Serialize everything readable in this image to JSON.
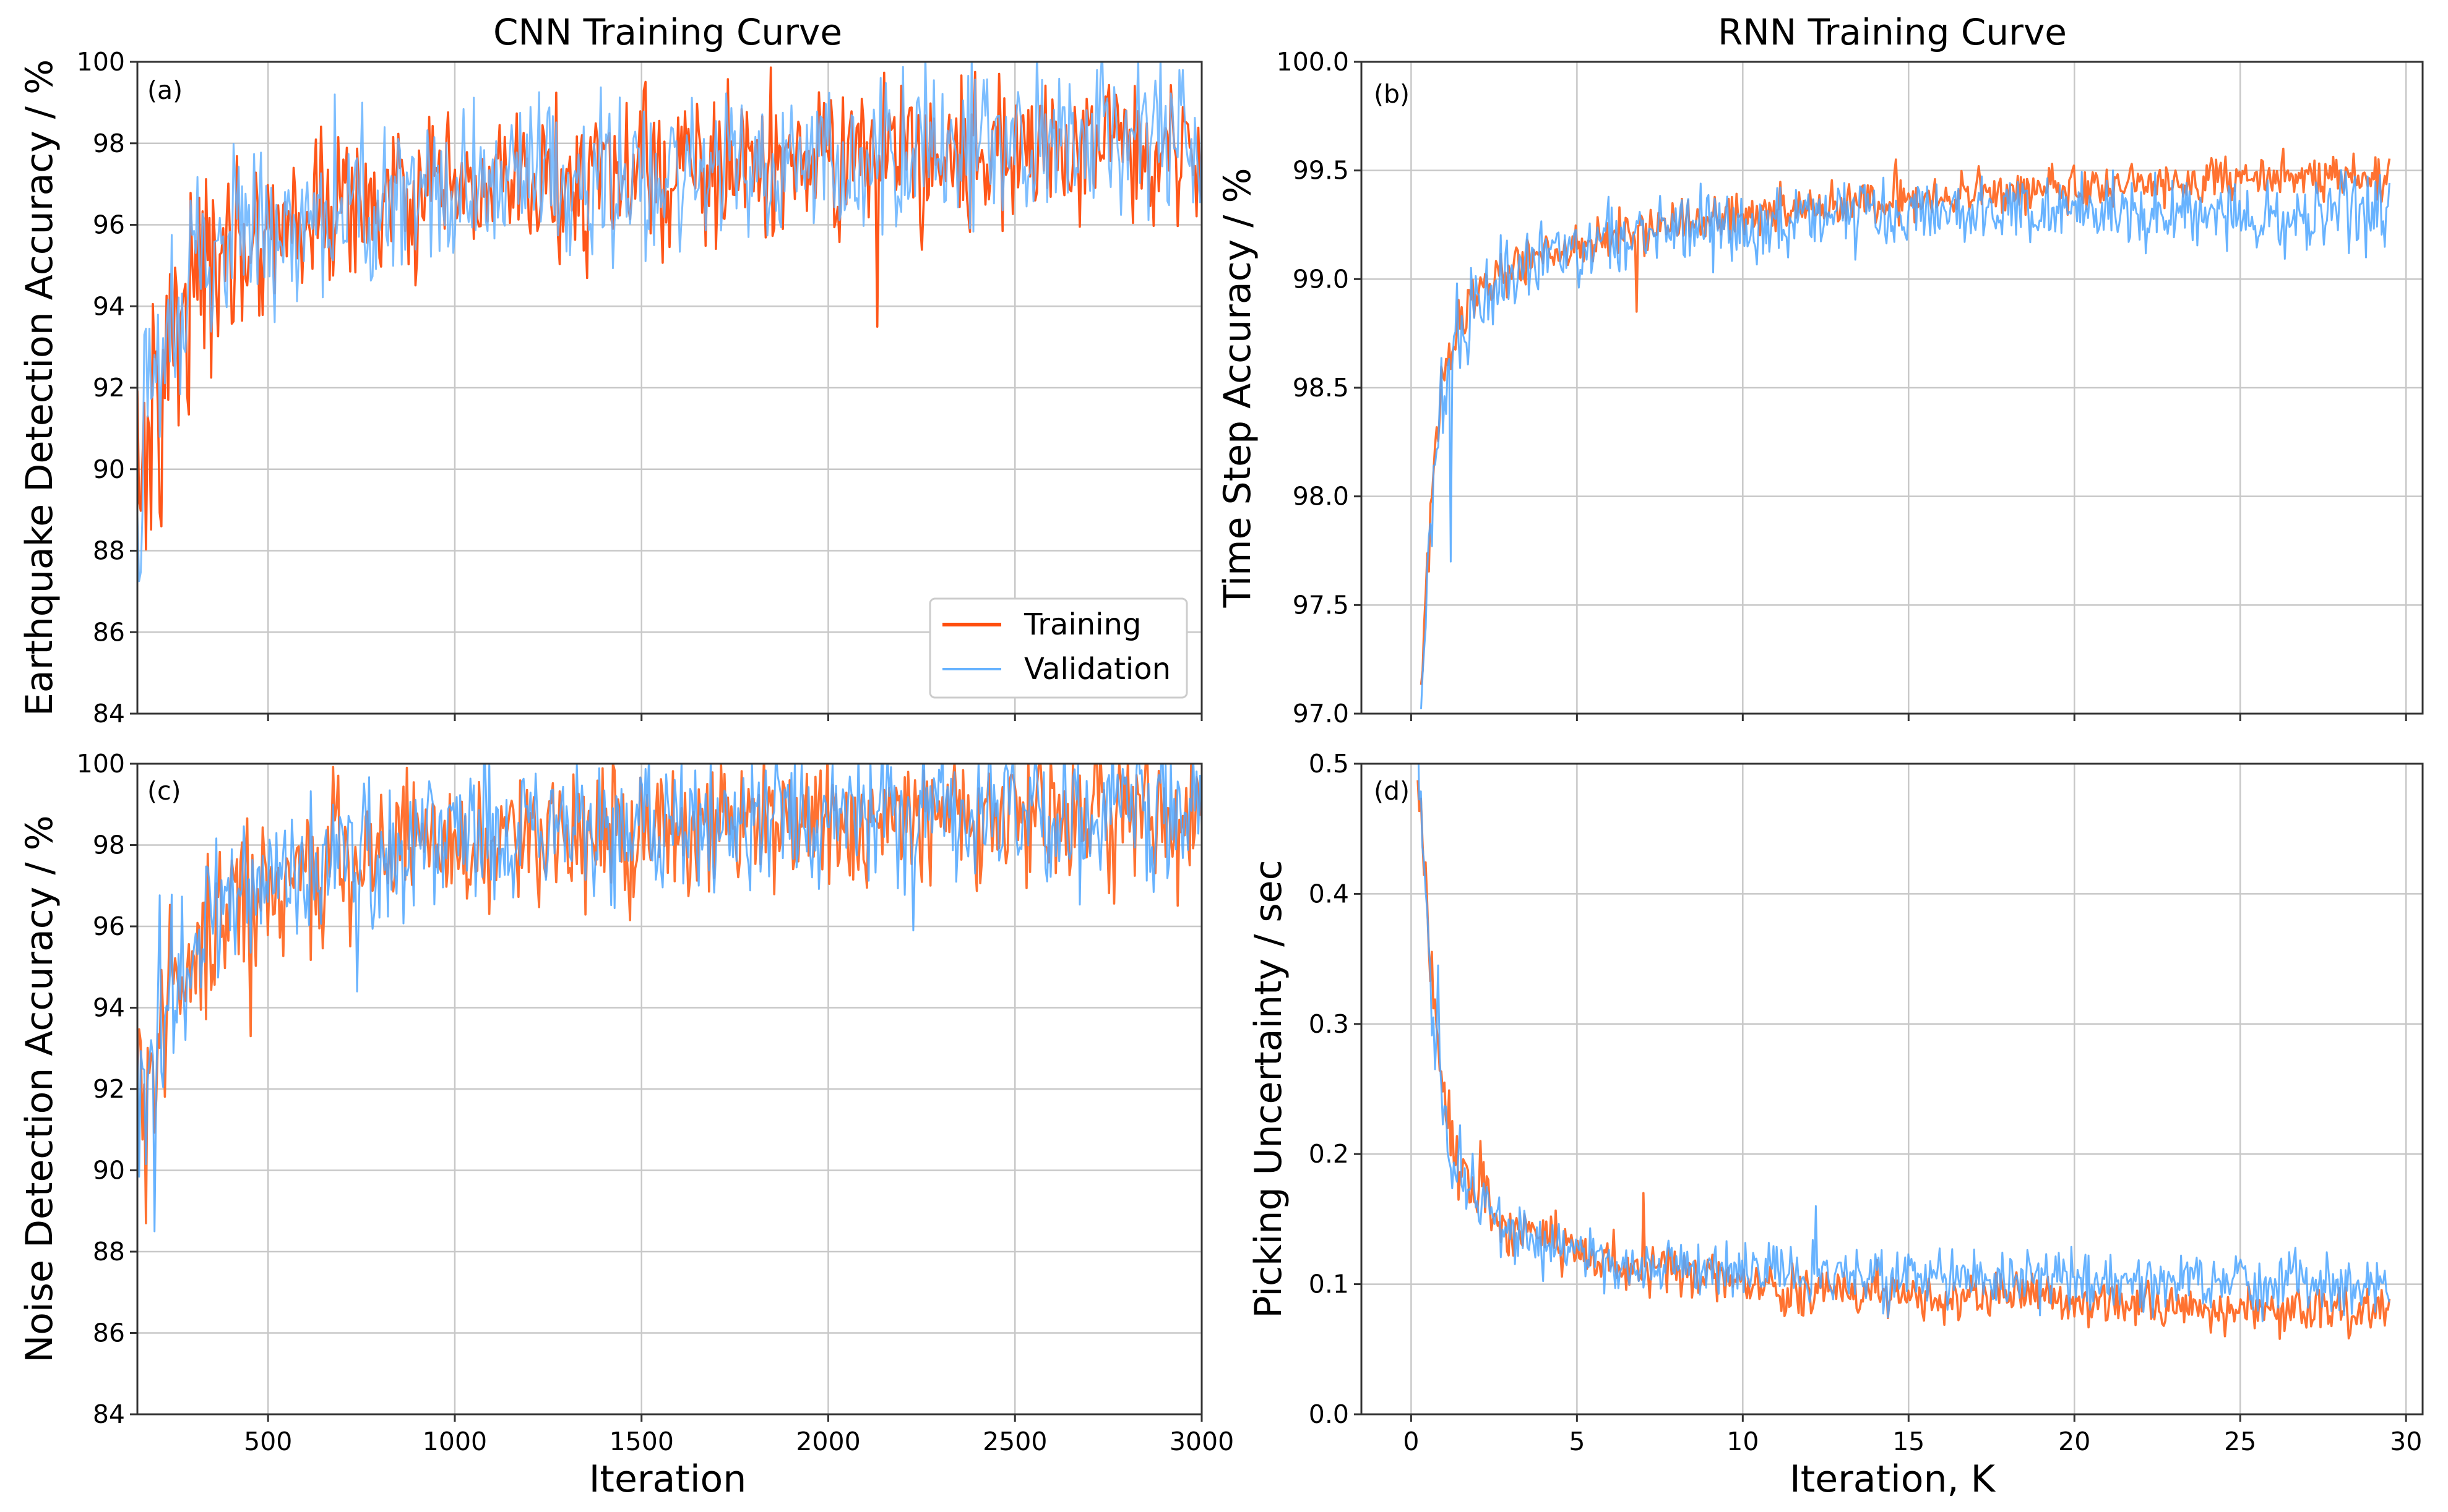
{
  "chart_data": [
    {
      "id": "a",
      "panel_label": "(a)",
      "type": "line",
      "title": "CNN Training Curve",
      "xlabel": "",
      "ylabel": "Earthquake Detection Accuracy / %",
      "xlim": [
        150,
        3000
      ],
      "ylim": [
        84,
        100
      ],
      "xticks": [
        500,
        1000,
        1500,
        2000,
        2500,
        3000
      ],
      "xtick_labels_shown": false,
      "yticks": [
        84,
        86,
        88,
        90,
        92,
        94,
        96,
        98,
        100
      ],
      "ytick_labels": [
        "84",
        "86",
        "88",
        "90",
        "92",
        "94",
        "96",
        "98",
        "100"
      ],
      "grid": true,
      "legend": {
        "position": "lower-right",
        "entries": [
          "Training",
          "Validation"
        ]
      },
      "series": [
        {
          "name": "Training",
          "color": "#ff4d0d",
          "x": [
            150,
            200,
            250,
            300,
            350,
            400,
            450,
            500,
            600,
            700,
            800,
            900,
            1000,
            1200,
            1400,
            1600,
            1800,
            2000,
            2200,
            2400,
            2600,
            2800,
            3000
          ],
          "y": [
            89.5,
            92.0,
            93.8,
            94.5,
            95.0,
            95.4,
            95.7,
            96.0,
            96.2,
            96.4,
            96.5,
            96.6,
            96.7,
            96.9,
            97.1,
            97.3,
            97.4,
            97.6,
            97.7,
            97.8,
            97.9,
            98.0,
            98.1
          ],
          "noise": 1.4,
          "outliers": [
            {
              "x": 2130,
              "y": 93.5
            },
            {
              "x": 215,
              "y": 88.6
            }
          ]
        },
        {
          "name": "Validation",
          "color": "#66b3ff",
          "x": [
            150,
            200,
            250,
            300,
            350,
            400,
            450,
            500,
            600,
            700,
            800,
            900,
            1000,
            1200,
            1400,
            1600,
            1800,
            2000,
            2200,
            2400,
            2600,
            2800,
            3000
          ],
          "y": [
            89.8,
            92.2,
            93.9,
            94.6,
            95.1,
            95.5,
            95.8,
            96.1,
            96.3,
            96.5,
            96.6,
            96.7,
            96.8,
            97.0,
            97.2,
            97.4,
            97.5,
            97.7,
            97.8,
            97.9,
            98.0,
            98.1,
            98.2
          ],
          "noise": 1.5,
          "outliers": [
            {
              "x": 2720,
              "y": 99.8
            },
            {
              "x": 2950,
              "y": 99.8
            },
            {
              "x": 680,
              "y": 99.2
            }
          ]
        }
      ]
    },
    {
      "id": "b",
      "panel_label": "(b)",
      "type": "line",
      "title": "RNN Training Curve",
      "xlabel": "",
      "ylabel": "Time Step Accuracy / %",
      "xlim": [
        -1.5,
        30.5
      ],
      "ylim": [
        97.0,
        100.0
      ],
      "xticks": [
        0,
        5,
        10,
        15,
        20,
        25,
        30
      ],
      "xtick_labels_shown": false,
      "yticks": [
        97.0,
        97.5,
        98.0,
        98.5,
        99.0,
        99.5,
        100.0
      ],
      "ytick_labels": [
        "97.0",
        "97.5",
        "98.0",
        "98.5",
        "99.0",
        "99.5",
        "100.0"
      ],
      "grid": true,
      "series": [
        {
          "name": "Training",
          "color": "#ff6a26",
          "x": [
            0.3,
            0.5,
            0.8,
            1.0,
            1.5,
            2.0,
            3.0,
            4.0,
            5.0,
            6.0,
            8.0,
            10.0,
            12.0,
            15.0,
            18.0,
            20.0,
            22.0,
            25.0,
            27.0,
            29.5
          ],
          "y": [
            97.0,
            97.8,
            98.3,
            98.6,
            98.8,
            98.95,
            99.05,
            99.12,
            99.17,
            99.2,
            99.25,
            99.3,
            99.33,
            99.37,
            99.4,
            99.42,
            99.44,
            99.46,
            99.47,
            99.48
          ],
          "noise": 0.08,
          "outliers": [
            {
              "x": 14.6,
              "y": 99.55
            },
            {
              "x": 26.3,
              "y": 99.6
            },
            {
              "x": 6.8,
              "y": 98.85
            }
          ]
        },
        {
          "name": "Validation",
          "color": "#4da6ff",
          "x": [
            0.3,
            0.5,
            0.8,
            1.0,
            1.5,
            2.0,
            3.0,
            4.0,
            5.0,
            6.0,
            8.0,
            10.0,
            12.0,
            15.0,
            18.0,
            20.0,
            22.0,
            25.0,
            27.0,
            29.5
          ],
          "y": [
            97.0,
            97.75,
            98.25,
            98.55,
            98.75,
            98.9,
            99.02,
            99.1,
            99.15,
            99.18,
            99.22,
            99.25,
            99.27,
            99.3,
            99.31,
            99.31,
            99.31,
            99.31,
            99.31,
            99.31
          ],
          "noise": 0.12,
          "outliers": [
            {
              "x": 1.2,
              "y": 97.7
            },
            {
              "x": 28.8,
              "y": 99.1
            }
          ]
        }
      ]
    },
    {
      "id": "c",
      "panel_label": "(c)",
      "type": "line",
      "title": "",
      "xlabel": "Iteration",
      "ylabel": "Noise Detection Accuracy / %",
      "xlim": [
        150,
        3000
      ],
      "ylim": [
        84,
        100
      ],
      "xticks": [
        500,
        1000,
        1500,
        2000,
        2500,
        3000
      ],
      "xtick_labels_shown": true,
      "xtick_labels": [
        "500",
        "1000",
        "1500",
        "2000",
        "2500",
        "3000"
      ],
      "yticks": [
        84,
        86,
        88,
        90,
        92,
        94,
        96,
        98,
        100
      ],
      "ytick_labels": [
        "84",
        "86",
        "88",
        "90",
        "92",
        "94",
        "96",
        "98",
        "100"
      ],
      "grid": true,
      "series": [
        {
          "name": "Training",
          "color": "#ff6a26",
          "x": [
            150,
            200,
            250,
            300,
            350,
            400,
            450,
            500,
            600,
            700,
            800,
            900,
            1000,
            1200,
            1400,
            1600,
            1800,
            2000,
            2200,
            2400,
            2600,
            2800,
            3000
          ],
          "y": [
            91.0,
            93.2,
            94.6,
            95.4,
            96.0,
            96.5,
            96.8,
            97.1,
            97.4,
            97.6,
            97.8,
            97.9,
            98.0,
            98.1,
            98.2,
            98.3,
            98.4,
            98.5,
            98.5,
            98.6,
            98.6,
            98.7,
            98.7
          ],
          "noise": 1.3,
          "outliers": [
            {
              "x": 175,
              "y": 88.7
            },
            {
              "x": 455,
              "y": 93.3
            },
            {
              "x": 870,
              "y": 99.9
            }
          ]
        },
        {
          "name": "Validation",
          "color": "#4da6ff",
          "x": [
            150,
            200,
            250,
            300,
            350,
            400,
            450,
            500,
            600,
            700,
            800,
            900,
            1000,
            1200,
            1400,
            1600,
            1800,
            2000,
            2200,
            2400,
            2600,
            2800,
            3000
          ],
          "y": [
            91.2,
            93.4,
            94.8,
            95.6,
            96.2,
            96.7,
            97.0,
            97.3,
            97.6,
            97.8,
            98.0,
            98.1,
            98.2,
            98.3,
            98.4,
            98.5,
            98.6,
            98.7,
            98.7,
            98.8,
            98.8,
            98.9,
            98.9
          ],
          "noise": 1.3,
          "outliers": [
            {
              "x": 195,
              "y": 88.5
            },
            {
              "x": 740,
              "y": 94.4
            },
            {
              "x": 2230,
              "y": 95.9
            },
            {
              "x": 2010,
              "y": 100.0
            }
          ]
        }
      ]
    },
    {
      "id": "d",
      "panel_label": "(d)",
      "type": "line",
      "title": "",
      "xlabel": "Iteration, K",
      "ylabel": "Picking Uncertainty / sec",
      "xlim": [
        -1.5,
        30.5
      ],
      "ylim": [
        0.0,
        0.5
      ],
      "xticks": [
        0,
        5,
        10,
        15,
        20,
        25,
        30
      ],
      "xtick_labels_shown": true,
      "xtick_labels": [
        "0",
        "5",
        "10",
        "15",
        "20",
        "25",
        "30"
      ],
      "yticks": [
        0.0,
        0.1,
        0.2,
        0.3,
        0.4,
        0.5
      ],
      "ytick_labels": [
        "0.0",
        "0.1",
        "0.2",
        "0.3",
        "0.4",
        "0.5"
      ],
      "grid": true,
      "series": [
        {
          "name": "Training",
          "color": "#ff6a26",
          "x": [
            0.2,
            0.4,
            0.6,
            0.8,
            1.0,
            1.3,
            1.6,
            2.0,
            2.5,
            3.0,
            4.0,
            5.0,
            6.0,
            8.0,
            10.0,
            12.0,
            15.0,
            18.0,
            20.0,
            22.0,
            25.0,
            27.0,
            29.5
          ],
          "y": [
            0.5,
            0.42,
            0.33,
            0.28,
            0.24,
            0.21,
            0.19,
            0.17,
            0.155,
            0.145,
            0.135,
            0.125,
            0.118,
            0.11,
            0.102,
            0.097,
            0.093,
            0.09,
            0.087,
            0.085,
            0.082,
            0.08,
            0.079
          ],
          "noise": 0.014,
          "outliers": [
            {
              "x": 2.1,
              "y": 0.21
            },
            {
              "x": 7.0,
              "y": 0.17
            },
            {
              "x": 26.2,
              "y": 0.058
            }
          ]
        },
        {
          "name": "Validation",
          "color": "#4da6ff",
          "x": [
            0.2,
            0.4,
            0.6,
            0.8,
            1.0,
            1.3,
            1.6,
            2.0,
            2.5,
            3.0,
            4.0,
            5.0,
            6.0,
            8.0,
            10.0,
            12.0,
            15.0,
            18.0,
            20.0,
            22.0,
            25.0,
            27.0,
            29.5
          ],
          "y": [
            0.5,
            0.41,
            0.32,
            0.27,
            0.23,
            0.2,
            0.18,
            0.165,
            0.15,
            0.14,
            0.13,
            0.122,
            0.117,
            0.112,
            0.11,
            0.108,
            0.106,
            0.105,
            0.104,
            0.103,
            0.102,
            0.101,
            0.1
          ],
          "noise": 0.017,
          "outliers": [
            {
              "x": 0.8,
              "y": 0.345
            },
            {
              "x": 12.2,
              "y": 0.16
            }
          ]
        }
      ]
    }
  ]
}
